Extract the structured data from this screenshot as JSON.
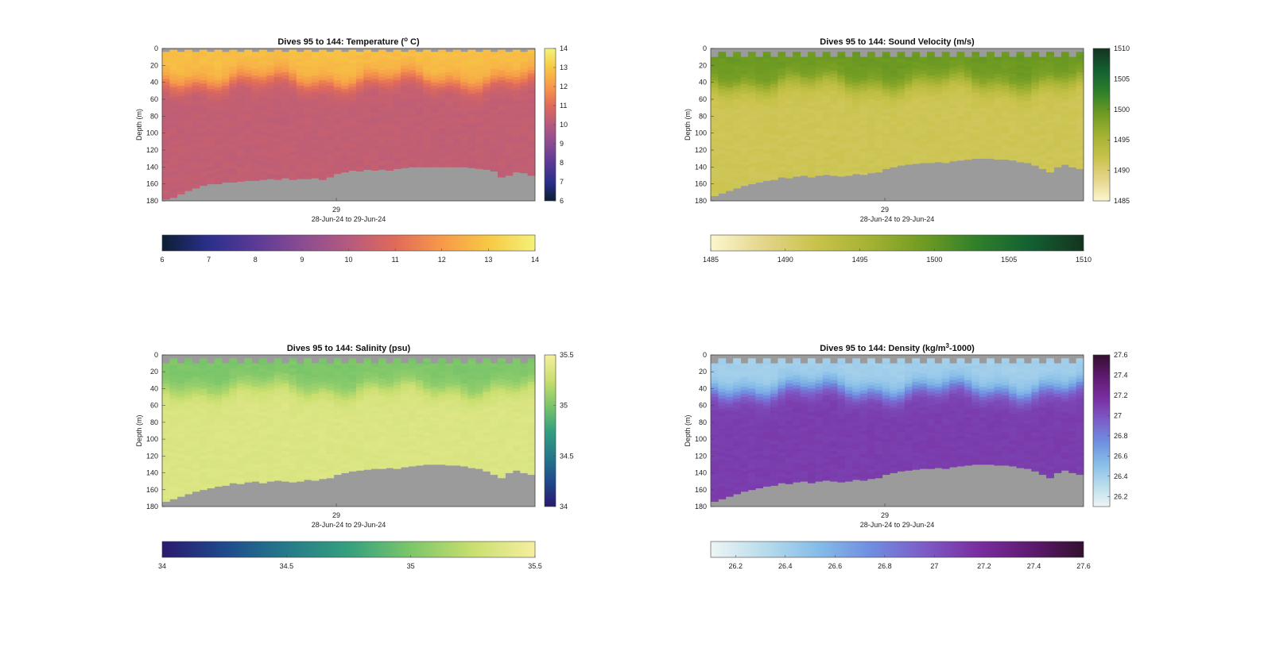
{
  "chart_data": [
    {
      "type": "heatmap",
      "title": "Dives 95 to 144: Temperature (",
      "title_sup": "o",
      "title_end": " C)",
      "xlabel": "28-Jun-24 to 29-Jun-24",
      "ylabel": "Depth (m)",
      "x_tick_labels": [
        "29"
      ],
      "y_ticks": [
        0,
        20,
        40,
        60,
        80,
        100,
        120,
        140,
        160,
        180
      ],
      "ylim": [
        180,
        0
      ],
      "colorbar_range": [
        6,
        14
      ],
      "colorbar_ticks": [
        6,
        7,
        8,
        9,
        10,
        11,
        12,
        13,
        14
      ],
      "horizontal_colorbar_ticks": [
        6,
        7,
        8,
        9,
        10,
        11,
        12,
        13,
        14
      ],
      "colormap": [
        "#0b1f33",
        "#2b2f8c",
        "#5b3a96",
        "#8a4c92",
        "#b55a7e",
        "#e06a5a",
        "#f7994a",
        "#f7c844",
        "#f4f27a"
      ],
      "profile": {
        "surface_value": 12.8,
        "surface_depth": 38,
        "deep_value": 10.3
      },
      "dives": 50,
      "max_depth": [
        178,
        176,
        172,
        168,
        165,
        162,
        160,
        160,
        158,
        158,
        157,
        156,
        156,
        155,
        154,
        155,
        153,
        155,
        154,
        154,
        153,
        155,
        152,
        148,
        146,
        144,
        145,
        143,
        144,
        143,
        144,
        142,
        141,
        140,
        140,
        140,
        140,
        140,
        140,
        140,
        140,
        141,
        142,
        143,
        145,
        152,
        150,
        146,
        147,
        150
      ],
      "missing_surface_m": 4
    },
    {
      "type": "heatmap",
      "title": "Dives 95 to 144: Sound Velocity (m/s)",
      "xlabel": "28-Jun-24 to 29-Jun-24",
      "ylabel": "Depth (m)",
      "x_tick_labels": [
        "29"
      ],
      "y_ticks": [
        0,
        20,
        40,
        60,
        80,
        100,
        120,
        140,
        160,
        180
      ],
      "ylim": [
        180,
        0
      ],
      "colorbar_range": [
        1485,
        1510
      ],
      "colorbar_ticks": [
        1485,
        1490,
        1495,
        1500,
        1505,
        1510
      ],
      "horizontal_colorbar_ticks": [
        1485,
        1490,
        1495,
        1500,
        1505,
        1510
      ],
      "colormap": [
        "#fbf6cf",
        "#e4d58a",
        "#c8c24a",
        "#a3b232",
        "#6f9b22",
        "#2f7f2a",
        "#136032",
        "#14331f"
      ],
      "profile": {
        "surface_value": 1499.5,
        "surface_depth": 42,
        "deep_value": 1491.5
      },
      "dives": 50,
      "max_depth": [
        174,
        171,
        168,
        165,
        162,
        160,
        158,
        156,
        155,
        152,
        153,
        151,
        150,
        152,
        150,
        149,
        150,
        151,
        150,
        148,
        149,
        147,
        146,
        142,
        140,
        138,
        137,
        136,
        135,
        135,
        134,
        135,
        133,
        132,
        131,
        130,
        130,
        130,
        131,
        131,
        132,
        134,
        135,
        138,
        142,
        146,
        140,
        137,
        140,
        142
      ],
      "missing_surface_m": 10
    },
    {
      "type": "heatmap",
      "title": "Dives 95 to 144: Salinity (psu)",
      "xlabel": "28-Jun-24 to 29-Jun-24",
      "ylabel": "Depth (m)",
      "x_tick_labels": [
        "29"
      ],
      "y_ticks": [
        0,
        20,
        40,
        60,
        80,
        100,
        120,
        140,
        160,
        180
      ],
      "ylim": [
        180,
        0
      ],
      "colorbar_range": [
        34,
        35.5
      ],
      "colorbar_ticks": [
        34,
        34.5,
        35,
        35.5
      ],
      "horizontal_colorbar_ticks": [
        34,
        34.5,
        35,
        35.5
      ],
      "colormap": [
        "#2a1a6e",
        "#1f4a8c",
        "#257a8a",
        "#34a07e",
        "#7cc66a",
        "#c9df6f",
        "#f6eea0"
      ],
      "profile": {
        "surface_value": 35.0,
        "surface_depth": 40,
        "deep_value": 35.35
      },
      "dives": 50,
      "max_depth": [
        174,
        171,
        168,
        165,
        162,
        160,
        158,
        156,
        155,
        152,
        153,
        151,
        150,
        152,
        150,
        149,
        150,
        151,
        150,
        148,
        149,
        147,
        146,
        142,
        140,
        138,
        137,
        136,
        135,
        135,
        134,
        135,
        133,
        132,
        131,
        130,
        130,
        130,
        131,
        131,
        132,
        134,
        135,
        138,
        142,
        146,
        140,
        137,
        140,
        142
      ],
      "missing_surface_m": 10
    },
    {
      "type": "heatmap",
      "title": "Dives 95 to 144: Density (kg/m",
      "title_sup": "3",
      "title_end": "-1000)",
      "xlabel": "28-Jun-24 to 29-Jun-24",
      "ylabel": "Depth (m)",
      "x_tick_labels": [
        "29"
      ],
      "y_ticks": [
        0,
        20,
        40,
        60,
        80,
        100,
        120,
        140,
        160,
        180
      ],
      "ylim": [
        180,
        0
      ],
      "colorbar_range": [
        26.1,
        27.6
      ],
      "colorbar_ticks": [
        26.2,
        26.4,
        26.6,
        26.8,
        27,
        27.2,
        27.4,
        27.6
      ],
      "horizontal_colorbar_ticks": [
        26.2,
        26.4,
        26.6,
        26.8,
        27,
        27.2,
        27.4,
        27.6
      ],
      "colormap": [
        "#eef5f5",
        "#b8dcec",
        "#86bde8",
        "#6f8ee0",
        "#7d5cc8",
        "#7a2ea0",
        "#5e1a70",
        "#33102f"
      ],
      "profile": {
        "surface_value": 26.4,
        "surface_depth": 42,
        "deep_value": 27.1
      },
      "dives": 50,
      "max_depth": [
        174,
        171,
        168,
        165,
        162,
        160,
        158,
        156,
        155,
        152,
        153,
        151,
        150,
        152,
        150,
        149,
        150,
        151,
        150,
        148,
        149,
        147,
        146,
        142,
        140,
        138,
        137,
        136,
        135,
        135,
        134,
        135,
        133,
        132,
        131,
        130,
        130,
        130,
        131,
        131,
        132,
        134,
        135,
        138,
        142,
        146,
        140,
        137,
        140,
        142
      ],
      "missing_surface_m": 10
    }
  ],
  "colors": {
    "no_data": "#9b9b9b",
    "axis": "#444444"
  }
}
